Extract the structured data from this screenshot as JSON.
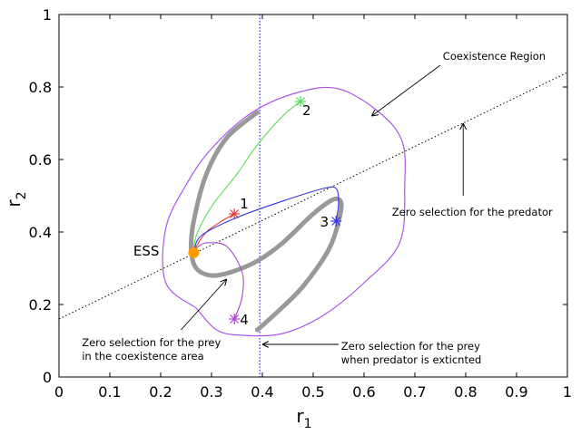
{
  "chart_data": {
    "type": "line",
    "title": "",
    "xlabel": "r",
    "xlabel_sub": "1",
    "ylabel": "r",
    "ylabel_sub": "2",
    "xlim": [
      0,
      1
    ],
    "ylim": [
      0,
      1
    ],
    "xticks": [
      "0",
      "0.1",
      "0.2",
      "0.3",
      "0.4",
      "0.5",
      "0.6",
      "0.7",
      "0.8",
      "0.9",
      "1"
    ],
    "yticks": [
      "0",
      "0.2",
      "0.4",
      "0.6",
      "0.8",
      "1"
    ],
    "grid": false,
    "ess_point": {
      "label": "ESS",
      "x": 0.265,
      "y": 0.343,
      "color": "#ff9900"
    },
    "coexistence_boundary": {
      "color": "#aa55ee",
      "points": [
        [
          0.27,
          0.19
        ],
        [
          0.31,
          0.13
        ],
        [
          0.36,
          0.115
        ],
        [
          0.44,
          0.12
        ],
        [
          0.52,
          0.17
        ],
        [
          0.6,
          0.26
        ],
        [
          0.67,
          0.37
        ],
        [
          0.68,
          0.53
        ],
        [
          0.675,
          0.65
        ],
        [
          0.63,
          0.73
        ],
        [
          0.55,
          0.795
        ],
        [
          0.47,
          0.785
        ],
        [
          0.38,
          0.73
        ],
        [
          0.3,
          0.63
        ],
        [
          0.25,
          0.53
        ],
        [
          0.21,
          0.41
        ],
        [
          0.21,
          0.26
        ],
        [
          0.27,
          0.19
        ]
      ]
    },
    "prey_null_curve": {
      "color": "#999999",
      "points": [
        [
          0.39,
          0.13
        ],
        [
          0.43,
          0.18
        ],
        [
          0.48,
          0.25
        ],
        [
          0.53,
          0.35
        ],
        [
          0.55,
          0.43
        ],
        [
          0.555,
          0.48
        ],
        [
          0.54,
          0.49
        ],
        [
          0.5,
          0.45
        ],
        [
          0.44,
          0.37
        ],
        [
          0.39,
          0.32
        ],
        [
          0.34,
          0.29
        ],
        [
          0.3,
          0.28
        ],
        [
          0.27,
          0.3
        ],
        [
          0.26,
          0.35
        ],
        [
          0.265,
          0.43
        ],
        [
          0.29,
          0.56
        ],
        [
          0.33,
          0.66
        ],
        [
          0.39,
          0.73
        ]
      ]
    },
    "predator_null_line": {
      "points": [
        [
          0.0,
          0.16
        ],
        [
          1.0,
          0.84
        ]
      ]
    },
    "prey_vertical_line": {
      "x": 0.395
    },
    "trajectories": [
      {
        "label": "1",
        "color": "#e03a3a",
        "start": [
          0.345,
          0.45
        ],
        "points": [
          [
            0.345,
            0.45
          ],
          [
            0.32,
            0.43
          ],
          [
            0.29,
            0.4
          ],
          [
            0.27,
            0.36
          ],
          [
            0.265,
            0.343
          ]
        ]
      },
      {
        "label": "2",
        "color": "#55dd55",
        "start": [
          0.475,
          0.76
        ],
        "points": [
          [
            0.475,
            0.76
          ],
          [
            0.44,
            0.72
          ],
          [
            0.39,
            0.64
          ],
          [
            0.35,
            0.56
          ],
          [
            0.3,
            0.47
          ],
          [
            0.27,
            0.39
          ],
          [
            0.265,
            0.343
          ]
        ]
      },
      {
        "label": "3",
        "color": "#3333dd",
        "start": [
          0.545,
          0.43
        ],
        "points": [
          [
            0.545,
            0.43
          ],
          [
            0.55,
            0.48
          ],
          [
            0.545,
            0.52
          ],
          [
            0.52,
            0.52
          ],
          [
            0.45,
            0.49
          ],
          [
            0.35,
            0.44
          ],
          [
            0.28,
            0.39
          ],
          [
            0.265,
            0.343
          ]
        ]
      },
      {
        "label": "4",
        "color": "#aa44cc",
        "start": [
          0.345,
          0.16
        ],
        "points": [
          [
            0.345,
            0.16
          ],
          [
            0.36,
            0.22
          ],
          [
            0.36,
            0.29
          ],
          [
            0.33,
            0.36
          ],
          [
            0.29,
            0.37
          ],
          [
            0.27,
            0.355
          ],
          [
            0.265,
            0.343
          ]
        ]
      }
    ],
    "annotations": [
      {
        "id": "coexistence",
        "text": "Coexistence Region",
        "x": 0.755,
        "y": 0.875,
        "arrow_from": [
          0.75,
          0.86
        ],
        "arrow_to": [
          0.615,
          0.72
        ]
      },
      {
        "id": "predator",
        "text": "Zero selection for the predator",
        "x": 0.655,
        "y": 0.445,
        "arrow_from": [
          0.795,
          0.5
        ],
        "arrow_to": [
          0.795,
          0.7
        ]
      },
      {
        "id": "prey-coex",
        "text_lines": [
          "Zero selection for the prey",
          "in the coexistence area"
        ],
        "x": 0.045,
        "y": 0.085,
        "arrow_from": [
          0.24,
          0.13
        ],
        "arrow_to": [
          0.33,
          0.27
        ]
      },
      {
        "id": "prey-extinct",
        "text_lines": [
          "Zero selection for the prey",
          "when predator is exticnted"
        ],
        "x": 0.555,
        "y": 0.075,
        "arrow_from": [
          0.55,
          0.09
        ],
        "arrow_to": [
          0.4,
          0.09
        ]
      }
    ]
  }
}
